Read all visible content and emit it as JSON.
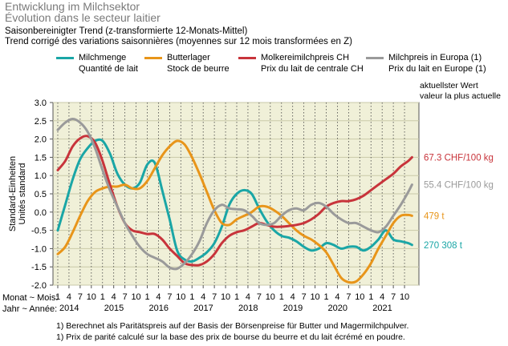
{
  "header": {
    "title_de": "Entwicklung im Milchsektor",
    "title_fr": "Évolution dans le secteur laitier",
    "subtitle_de": "Saisonbereinigter Trend (z-transformierte 12-Monats-Mittel)",
    "subtitle_fr": "Trend corrigé des variations saisonnières (moyennes sur 12 mois transformées en Z)"
  },
  "legend": [
    {
      "de": "Milchmenge",
      "fr": "Quantité de lait",
      "color": "#1aa6a6"
    },
    {
      "de": "Butterlager",
      "fr": "Stock de beurre",
      "color": "#e8951a"
    },
    {
      "de": "Molkereimilchpreis CH",
      "fr": "Prix du lait de centrale CH",
      "color": "#c8343b"
    },
    {
      "de": "Milchpreis in Europa (1)",
      "fr": "Prix du lait en Europe (1)",
      "color": "#9a9a9a"
    }
  ],
  "latest_header": {
    "de": "aktuellster Wert",
    "fr": "valeur la plus actuelle"
  },
  "axis": {
    "ylabel_de": "Standard-Einheiten",
    "ylabel_fr": "Unités standard",
    "x_label_month": "Monat ~ Mois:",
    "x_label_year": "Jahr ~ Année:"
  },
  "footnotes": [
    "1)   Berechnet als Paritätspreis auf der Basis der Börsenpreise für Butter und Magermilchpulver.",
    "1)   Prix de parité calculé sur la base des prix de bourse du beurre et du lait écrémé en poudre."
  ],
  "chart_data": {
    "type": "line",
    "ylim": [
      -2.0,
      3.0
    ],
    "y_ticks": [
      "3.0",
      "2.5",
      "2.0",
      "1.5",
      "1.0",
      "0.5",
      "0.0",
      "-0.5",
      "-1.0",
      "-1.5",
      "-2.0"
    ],
    "x_start": "2014-01",
    "x_end": "2021-12",
    "month_ticks": [
      "1",
      "4",
      "7",
      "10"
    ],
    "years": [
      "2014",
      "2015",
      "2016",
      "2017",
      "2018",
      "2019",
      "2020",
      "2021"
    ],
    "grid": true,
    "series": [
      {
        "name": "Milchmenge / Quantité de lait",
        "color": "#1aa6a6",
        "latest_label": "270 308 t",
        "points": [
          [
            "2014-01",
            -0.5
          ],
          [
            "2014-03",
            0.2
          ],
          [
            "2014-05",
            0.9
          ],
          [
            "2014-07",
            1.45
          ],
          [
            "2014-09",
            1.75
          ],
          [
            "2014-11",
            1.95
          ],
          [
            "2015-01",
            1.95
          ],
          [
            "2015-03",
            1.6
          ],
          [
            "2015-05",
            1.05
          ],
          [
            "2015-07",
            0.75
          ],
          [
            "2015-09",
            0.65
          ],
          [
            "2015-11",
            0.8
          ],
          [
            "2016-01",
            1.3
          ],
          [
            "2016-03",
            1.35
          ],
          [
            "2016-05",
            0.6
          ],
          [
            "2016-07",
            -0.2
          ],
          [
            "2016-09",
            -1.05
          ],
          [
            "2016-11",
            -1.3
          ],
          [
            "2017-01",
            -1.35
          ],
          [
            "2017-03",
            -1.25
          ],
          [
            "2017-05",
            -1.1
          ],
          [
            "2017-07",
            -0.85
          ],
          [
            "2017-09",
            -0.4
          ],
          [
            "2017-11",
            0.2
          ],
          [
            "2018-01",
            0.5
          ],
          [
            "2018-03",
            0.6
          ],
          [
            "2018-05",
            0.5
          ],
          [
            "2018-07",
            0.1
          ],
          [
            "2018-09",
            -0.25
          ],
          [
            "2018-11",
            -0.5
          ],
          [
            "2019-01",
            -0.65
          ],
          [
            "2019-03",
            -0.7
          ],
          [
            "2019-05",
            -0.8
          ],
          [
            "2019-07",
            -0.95
          ],
          [
            "2019-09",
            -1.05
          ],
          [
            "2019-11",
            -1.0
          ],
          [
            "2020-01",
            -0.85
          ],
          [
            "2020-03",
            -0.9
          ],
          [
            "2020-05",
            -1.0
          ],
          [
            "2020-07",
            -0.95
          ],
          [
            "2020-09",
            -0.95
          ],
          [
            "2020-11",
            -1.05
          ],
          [
            "2021-01",
            -0.95
          ],
          [
            "2021-03",
            -0.75
          ],
          [
            "2021-05",
            -0.5
          ],
          [
            "2021-07",
            -0.75
          ],
          [
            "2021-09",
            -0.8
          ],
          [
            "2021-11",
            -0.85
          ],
          [
            "2021-12",
            -0.9
          ]
        ]
      },
      {
        "name": "Butterlager / Stock de beurre",
        "color": "#e8951a",
        "latest_label": "479 t",
        "points": [
          [
            "2014-01",
            -1.15
          ],
          [
            "2014-03",
            -0.95
          ],
          [
            "2014-05",
            -0.55
          ],
          [
            "2014-07",
            -0.1
          ],
          [
            "2014-09",
            0.3
          ],
          [
            "2014-11",
            0.55
          ],
          [
            "2015-01",
            0.65
          ],
          [
            "2015-03",
            0.7
          ],
          [
            "2015-05",
            0.7
          ],
          [
            "2015-07",
            0.75
          ],
          [
            "2015-09",
            0.65
          ],
          [
            "2015-11",
            0.65
          ],
          [
            "2016-01",
            0.85
          ],
          [
            "2016-03",
            1.2
          ],
          [
            "2016-05",
            1.55
          ],
          [
            "2016-07",
            1.8
          ],
          [
            "2016-09",
            1.95
          ],
          [
            "2016-11",
            1.85
          ],
          [
            "2017-01",
            1.5
          ],
          [
            "2017-03",
            1.05
          ],
          [
            "2017-05",
            0.55
          ],
          [
            "2017-07",
            0.05
          ],
          [
            "2017-09",
            -0.3
          ],
          [
            "2017-11",
            -0.35
          ],
          [
            "2018-01",
            -0.2
          ],
          [
            "2018-03",
            -0.1
          ],
          [
            "2018-05",
            0.0
          ],
          [
            "2018-07",
            0.15
          ],
          [
            "2018-09",
            0.15
          ],
          [
            "2018-11",
            0.05
          ],
          [
            "2019-01",
            -0.1
          ],
          [
            "2019-03",
            -0.3
          ],
          [
            "2019-05",
            -0.5
          ],
          [
            "2019-07",
            -0.65
          ],
          [
            "2019-09",
            -0.75
          ],
          [
            "2019-11",
            -0.9
          ],
          [
            "2020-01",
            -1.1
          ],
          [
            "2020-03",
            -1.45
          ],
          [
            "2020-05",
            -1.8
          ],
          [
            "2020-07",
            -1.92
          ],
          [
            "2020-09",
            -1.9
          ],
          [
            "2020-11",
            -1.7
          ],
          [
            "2021-01",
            -1.4
          ],
          [
            "2021-03",
            -1.0
          ],
          [
            "2021-05",
            -0.65
          ],
          [
            "2021-07",
            -0.3
          ],
          [
            "2021-09",
            -0.1
          ],
          [
            "2021-11",
            -0.08
          ],
          [
            "2021-12",
            -0.1
          ]
        ]
      },
      {
        "name": "Molkereimilchpreis CH / Prix du lait de centrale CH",
        "color": "#c8343b",
        "latest_label": "67.3 CHF/100 kg",
        "points": [
          [
            "2014-01",
            1.15
          ],
          [
            "2014-03",
            1.4
          ],
          [
            "2014-05",
            1.8
          ],
          [
            "2014-07",
            2.02
          ],
          [
            "2014-09",
            2.08
          ],
          [
            "2014-11",
            1.9
          ],
          [
            "2015-01",
            1.4
          ],
          [
            "2015-03",
            0.75
          ],
          [
            "2015-05",
            0.15
          ],
          [
            "2015-07",
            -0.3
          ],
          [
            "2015-09",
            -0.5
          ],
          [
            "2015-11",
            -0.55
          ],
          [
            "2016-01",
            -0.6
          ],
          [
            "2016-03",
            -0.6
          ],
          [
            "2016-05",
            -0.75
          ],
          [
            "2016-07",
            -1.0
          ],
          [
            "2016-09",
            -1.2
          ],
          [
            "2016-11",
            -1.4
          ],
          [
            "2017-01",
            -1.45
          ],
          [
            "2017-03",
            -1.45
          ],
          [
            "2017-05",
            -1.35
          ],
          [
            "2017-07",
            -1.15
          ],
          [
            "2017-09",
            -0.85
          ],
          [
            "2017-11",
            -0.65
          ],
          [
            "2018-01",
            -0.55
          ],
          [
            "2018-03",
            -0.5
          ],
          [
            "2018-05",
            -0.4
          ],
          [
            "2018-07",
            -0.3
          ],
          [
            "2018-09",
            -0.35
          ],
          [
            "2018-11",
            -0.4
          ],
          [
            "2019-01",
            -0.4
          ],
          [
            "2019-03",
            -0.38
          ],
          [
            "2019-05",
            -0.35
          ],
          [
            "2019-07",
            -0.3
          ],
          [
            "2019-09",
            -0.2
          ],
          [
            "2019-11",
            -0.05
          ],
          [
            "2020-01",
            0.15
          ],
          [
            "2020-03",
            0.25
          ],
          [
            "2020-05",
            0.3
          ],
          [
            "2020-07",
            0.3
          ],
          [
            "2020-09",
            0.35
          ],
          [
            "2020-11",
            0.45
          ],
          [
            "2021-01",
            0.6
          ],
          [
            "2021-03",
            0.75
          ],
          [
            "2021-05",
            0.9
          ],
          [
            "2021-07",
            1.05
          ],
          [
            "2021-09",
            1.25
          ],
          [
            "2021-11",
            1.4
          ],
          [
            "2021-12",
            1.5
          ]
        ]
      },
      {
        "name": "Milchpreis in Europa (1) / Prix du lait en Europe (1)",
        "color": "#9a9a9a",
        "latest_label": "55.4 CHF/100 kg",
        "points": [
          [
            "2014-01",
            2.25
          ],
          [
            "2014-03",
            2.45
          ],
          [
            "2014-05",
            2.55
          ],
          [
            "2014-07",
            2.45
          ],
          [
            "2014-09",
            2.2
          ],
          [
            "2014-11",
            1.75
          ],
          [
            "2015-01",
            1.15
          ],
          [
            "2015-03",
            0.6
          ],
          [
            "2015-05",
            0.15
          ],
          [
            "2015-07",
            -0.3
          ],
          [
            "2015-09",
            -0.65
          ],
          [
            "2015-11",
            -0.95
          ],
          [
            "2016-01",
            -1.15
          ],
          [
            "2016-03",
            -1.25
          ],
          [
            "2016-05",
            -1.35
          ],
          [
            "2016-07",
            -1.52
          ],
          [
            "2016-09",
            -1.55
          ],
          [
            "2016-11",
            -1.4
          ],
          [
            "2017-01",
            -1.15
          ],
          [
            "2017-03",
            -0.8
          ],
          [
            "2017-05",
            -0.3
          ],
          [
            "2017-07",
            0.05
          ],
          [
            "2017-09",
            0.2
          ],
          [
            "2017-11",
            0.1
          ],
          [
            "2018-01",
            0.08
          ],
          [
            "2018-03",
            0.05
          ],
          [
            "2018-05",
            -0.1
          ],
          [
            "2018-07",
            -0.3
          ],
          [
            "2018-09",
            -0.35
          ],
          [
            "2018-11",
            -0.3
          ],
          [
            "2019-01",
            -0.1
          ],
          [
            "2019-03",
            0.05
          ],
          [
            "2019-05",
            0.1
          ],
          [
            "2019-07",
            0.05
          ],
          [
            "2019-09",
            0.2
          ],
          [
            "2019-11",
            0.25
          ],
          [
            "2020-01",
            0.15
          ],
          [
            "2020-03",
            -0.05
          ],
          [
            "2020-05",
            -0.2
          ],
          [
            "2020-07",
            -0.3
          ],
          [
            "2020-09",
            -0.3
          ],
          [
            "2020-11",
            -0.4
          ],
          [
            "2021-01",
            -0.5
          ],
          [
            "2021-03",
            -0.55
          ],
          [
            "2021-05",
            -0.4
          ],
          [
            "2021-07",
            -0.1
          ],
          [
            "2021-09",
            0.2
          ],
          [
            "2021-11",
            0.55
          ],
          [
            "2021-12",
            0.75
          ]
        ]
      }
    ]
  }
}
